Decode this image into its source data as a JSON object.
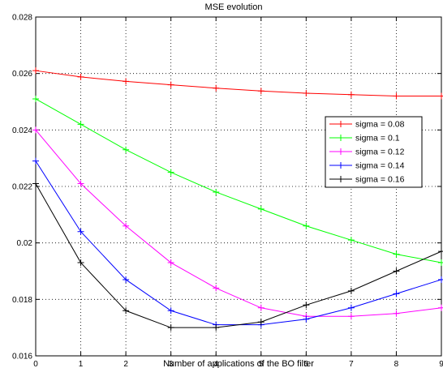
{
  "chart_data": {
    "type": "line",
    "title": "MSE evolution",
    "xlabel": "Number of applications of the BO filter",
    "ylabel": "",
    "xlim": [
      0,
      9
    ],
    "ylim": [
      0.016,
      0.028
    ],
    "grid": true,
    "legend_position": "right",
    "x": [
      0,
      1,
      2,
      3,
      4,
      5,
      6,
      7,
      8,
      9
    ],
    "x_ticks": [
      "0",
      "1",
      "2",
      "3",
      "4",
      "5",
      "6",
      "7",
      "8",
      "9"
    ],
    "y_ticks": [
      {
        "value": 0.016,
        "label": "0.016"
      },
      {
        "value": 0.018,
        "label": "0.018"
      },
      {
        "value": 0.02,
        "label": "0.02"
      },
      {
        "value": 0.022,
        "label": "0.022"
      },
      {
        "value": 0.024,
        "label": "0.024"
      },
      {
        "value": 0.026,
        "label": "0.026"
      },
      {
        "value": 0.028,
        "label": "0.028"
      }
    ],
    "series": [
      {
        "name": "sigma = 0.08",
        "color": "#ff0000",
        "values": [
          0.0261,
          0.02588,
          0.02572,
          0.0256,
          0.02548,
          0.02538,
          0.0253,
          0.02525,
          0.0252,
          0.0252
        ]
      },
      {
        "name": "sigma = 0.1",
        "color": "#00ff00",
        "values": [
          0.0251,
          0.0242,
          0.0233,
          0.0225,
          0.0218,
          0.0212,
          0.0206,
          0.0201,
          0.0196,
          0.0193
        ]
      },
      {
        "name": "sigma = 0.12",
        "color": "#ff00ff",
        "values": [
          0.024,
          0.0221,
          0.0206,
          0.0193,
          0.0184,
          0.0177,
          0.0174,
          0.0174,
          0.0175,
          0.0177
        ]
      },
      {
        "name": "sigma = 0.14",
        "color": "#0000ff",
        "values": [
          0.0229,
          0.0204,
          0.0187,
          0.0176,
          0.0171,
          0.0171,
          0.0173,
          0.0177,
          0.0182,
          0.0187
        ]
      },
      {
        "name": "sigma = 0.16",
        "color": "#000000",
        "values": [
          0.0221,
          0.0193,
          0.0176,
          0.017,
          0.017,
          0.0172,
          0.0178,
          0.0183,
          0.019,
          0.0197
        ]
      }
    ]
  }
}
